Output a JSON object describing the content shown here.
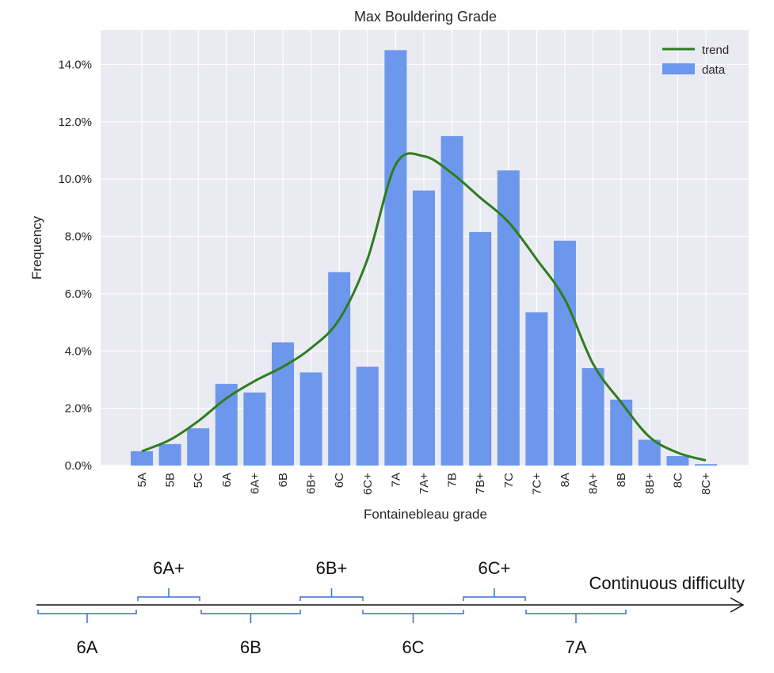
{
  "colors": {
    "plot_bg": "#EAEAF2",
    "grid": "#FFFFFF",
    "bar": "#6D97EC",
    "trend": "#2E7D1E",
    "bracket": "#3A70D0",
    "axis_text": "#262626"
  },
  "chart_data": {
    "type": "bar",
    "title": "Max Bouldering Grade",
    "xlabel": "Fontainebleau grade",
    "ylabel": "Frequency",
    "ylim": [
      0,
      15.2
    ],
    "yticks": [
      0,
      2,
      4,
      6,
      8,
      10,
      12,
      14
    ],
    "ytick_labels": [
      "0.0%",
      "2.0%",
      "4.0%",
      "6.0%",
      "8.0%",
      "10.0%",
      "12.0%",
      "14.0%"
    ],
    "grid": true,
    "legend": {
      "placement": "top-right",
      "entries": [
        "trend",
        "data"
      ]
    },
    "categories": [
      "5A",
      "5B",
      "5C",
      "6A",
      "6A+",
      "6B",
      "6B+",
      "6C",
      "6C+",
      "7A",
      "7A+",
      "7B",
      "7B+",
      "7C",
      "7C+",
      "8A",
      "8A+",
      "8B",
      "8B+",
      "8C",
      "8C+"
    ],
    "series": [
      {
        "name": "data",
        "kind": "bar",
        "values": [
          0.5,
          0.75,
          1.3,
          2.85,
          2.55,
          4.3,
          3.25,
          6.75,
          3.45,
          14.5,
          9.6,
          11.5,
          8.15,
          10.3,
          5.35,
          7.85,
          3.4,
          2.3,
          0.9,
          0.33,
          0.05
        ]
      },
      {
        "name": "trend",
        "kind": "line",
        "values": [
          0.5,
          0.9,
          1.55,
          2.35,
          2.95,
          3.45,
          4.1,
          5.1,
          7.2,
          10.5,
          10.8,
          10.2,
          9.35,
          8.5,
          7.2,
          5.8,
          3.55,
          2.2,
          1.0,
          0.45,
          0.18
        ]
      }
    ]
  },
  "difficulty_axis": {
    "label": "Continuous difficulty",
    "brackets": [
      {
        "label": "6A",
        "side": "below"
      },
      {
        "label": "6A+",
        "side": "above"
      },
      {
        "label": "6B",
        "side": "below"
      },
      {
        "label": "6B+",
        "side": "above"
      },
      {
        "label": "6C",
        "side": "below"
      },
      {
        "label": "6C+",
        "side": "above"
      },
      {
        "label": "7A",
        "side": "below"
      }
    ]
  }
}
